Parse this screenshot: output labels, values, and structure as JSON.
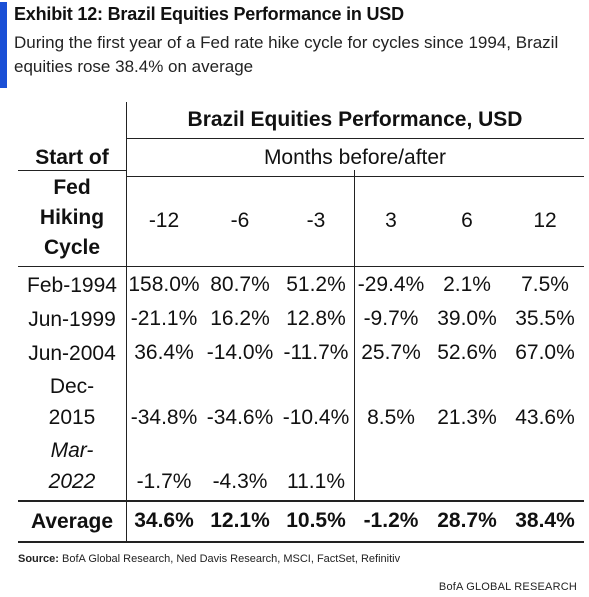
{
  "exhibit": {
    "title": "Exhibit 12: Brazil Equities Performance in USD",
    "subtitle": "During the first year of a Fed rate hike cycle for cycles since 1994, Brazil equities rose 38.4% on average",
    "accent_color": "#1a4fd6"
  },
  "table": {
    "header_main": "Brazil Equities Performance, USD",
    "header_sub": "Months before/after",
    "start_label": [
      "Start of",
      "Fed",
      "Hiking",
      "Cycle"
    ],
    "periods": [
      "-12",
      "-6",
      "-3",
      "3",
      "6",
      "12"
    ],
    "rows": [
      {
        "date": [
          "Feb-1994"
        ],
        "italic": false,
        "values": [
          "158.0%",
          "80.7%",
          "51.2%",
          "-29.4%",
          "2.1%",
          "7.5%"
        ]
      },
      {
        "date": [
          "Jun-1999"
        ],
        "italic": false,
        "values": [
          "-21.1%",
          "16.2%",
          "12.8%",
          "-9.7%",
          "39.0%",
          "35.5%"
        ]
      },
      {
        "date": [
          "Jun-2004"
        ],
        "italic": false,
        "values": [
          "36.4%",
          "-14.0%",
          "-11.7%",
          "25.7%",
          "52.6%",
          "67.0%"
        ]
      },
      {
        "date": [
          "Dec-",
          "2015"
        ],
        "italic": false,
        "values": [
          "-34.8%",
          "-34.6%",
          "-10.4%",
          "8.5%",
          "21.3%",
          "43.6%"
        ]
      },
      {
        "date": [
          "Mar-",
          "2022"
        ],
        "italic": true,
        "values": [
          "-1.7%",
          "-4.3%",
          "11.1%",
          "",
          "",
          ""
        ]
      }
    ],
    "average": {
      "label": "Average",
      "values": [
        "34.6%",
        "12.1%",
        "10.5%",
        "-1.2%",
        "28.7%",
        "38.4%"
      ]
    }
  },
  "footer": {
    "source_label": "Source:",
    "source_text": " BofA Global Research, Ned Davis Research, MSCI, FactSet, Refinitiv",
    "brand": "BofA GLOBAL RESEARCH"
  }
}
